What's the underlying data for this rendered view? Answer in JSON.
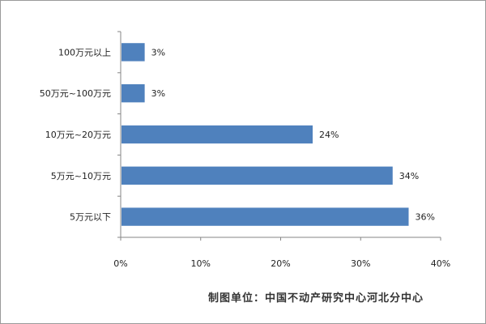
{
  "chart_data": {
    "type": "bar",
    "orientation": "horizontal",
    "categories": [
      "100万元以上",
      "50万元~100万元",
      "10万元~20万元",
      "5万元~10万元",
      "5万元以下"
    ],
    "values": [
      3,
      3,
      24,
      34,
      36
    ],
    "value_labels": [
      "3%",
      "3%",
      "24%",
      "34%",
      "36%"
    ],
    "xlim": [
      0,
      40
    ],
    "xticks": [
      0,
      10,
      20,
      30,
      40
    ],
    "xtick_labels": [
      "0%",
      "10%",
      "20%",
      "30%",
      "40%"
    ],
    "grid": false,
    "bar_color": "#4f81bd"
  },
  "source": "制图单位：中国不动产研究中心河北分中心"
}
